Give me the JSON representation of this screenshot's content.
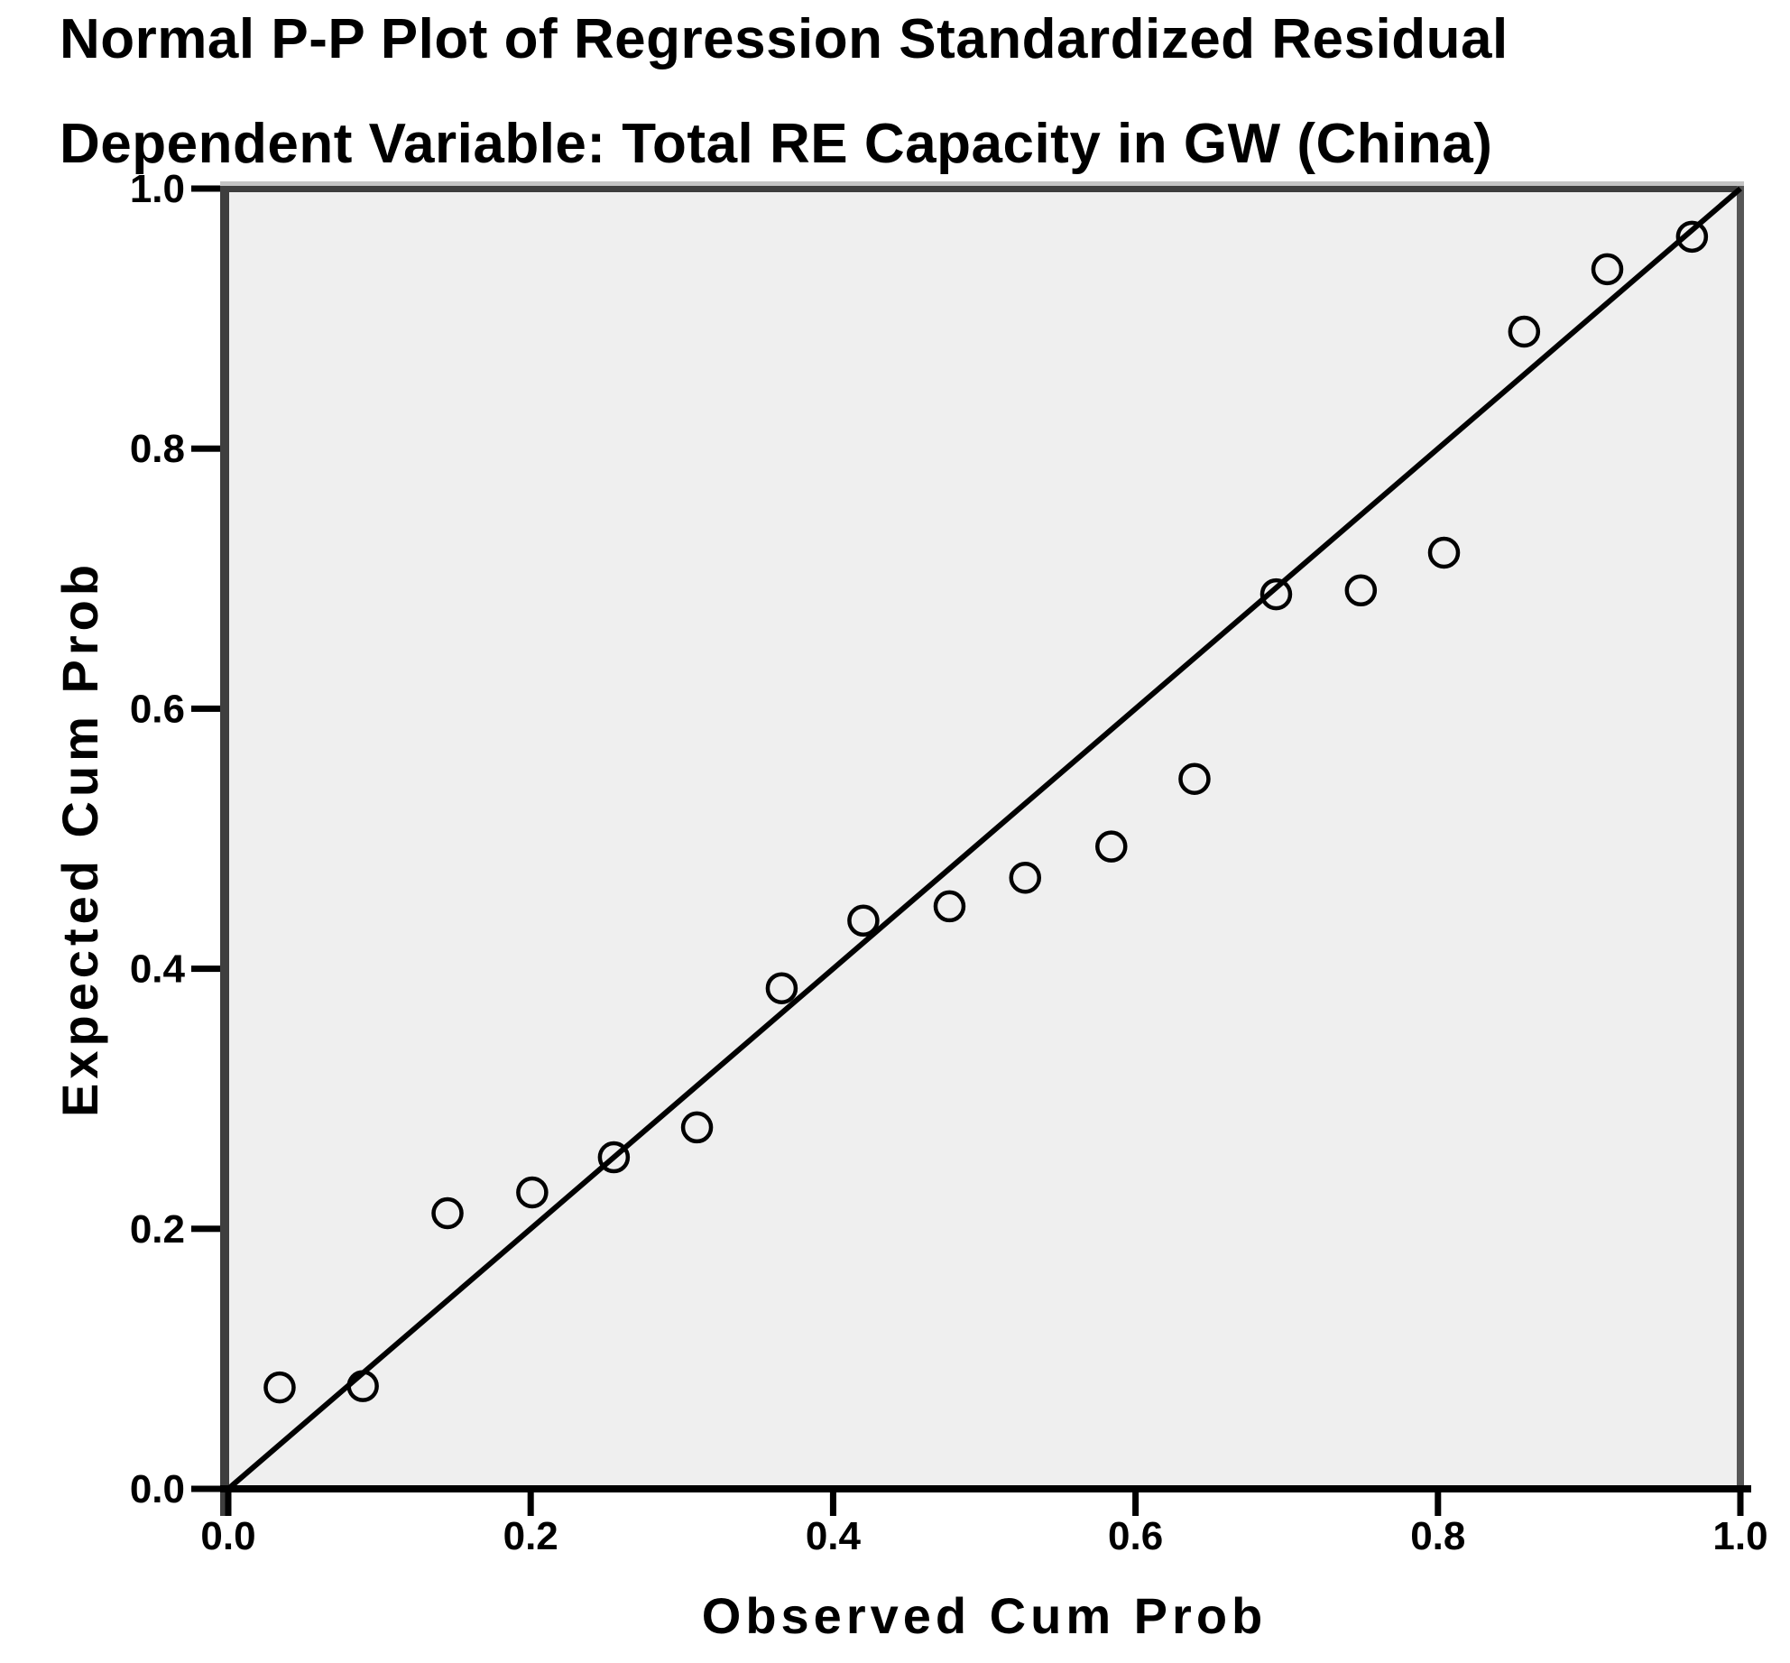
{
  "chart_data": {
    "type": "scatter",
    "title": "Normal P-P Plot of Regression Standardized Residual",
    "subtitle": "Dependent Variable: Total RE Capacity in GW (China)",
    "xlabel": "Observed Cum Prob",
    "ylabel": "Expected Cum Prob",
    "xlim": [
      0.0,
      1.0
    ],
    "ylim": [
      0.0,
      1.0
    ],
    "x_tick_values": [
      0.0,
      0.2,
      0.4,
      0.6,
      0.8,
      1.0
    ],
    "y_tick_values": [
      0.0,
      0.2,
      0.4,
      0.6,
      0.8,
      1.0
    ],
    "x_tick_labels": [
      "0.0",
      "0.2",
      "0.4",
      "0.6",
      "0.8",
      "1.0"
    ],
    "y_tick_labels": [
      "0.0",
      "0.2",
      "0.4",
      "0.6",
      "0.8",
      "1.0"
    ],
    "grid": false,
    "legend": false,
    "marker": "open-circle",
    "reference_line": {
      "from": [
        0.0,
        0.0
      ],
      "to": [
        1.0,
        1.0
      ]
    },
    "series": [
      {
        "name": "Regression standardized residual",
        "points": [
          [
            0.034,
            0.078
          ],
          [
            0.089,
            0.079
          ],
          [
            0.145,
            0.212
          ],
          [
            0.201,
            0.228
          ],
          [
            0.255,
            0.255
          ],
          [
            0.31,
            0.278
          ],
          [
            0.366,
            0.385
          ],
          [
            0.42,
            0.437
          ],
          [
            0.477,
            0.448
          ],
          [
            0.527,
            0.47
          ],
          [
            0.584,
            0.494
          ],
          [
            0.639,
            0.546
          ],
          [
            0.693,
            0.688
          ],
          [
            0.749,
            0.691
          ],
          [
            0.804,
            0.72
          ],
          [
            0.857,
            0.89
          ],
          [
            0.912,
            0.938
          ],
          [
            0.968,
            0.963
          ]
        ]
      }
    ],
    "colors": {
      "page_background": "#ffffff",
      "plot_background": "#efefef",
      "marker": "#000000",
      "reference_line": "#000000",
      "frame_dark": "#3e3e3e",
      "frame_right": "#565656",
      "frame_bevel": "#c4c4c4",
      "axis_line": "#000000",
      "text": "#000000"
    }
  }
}
